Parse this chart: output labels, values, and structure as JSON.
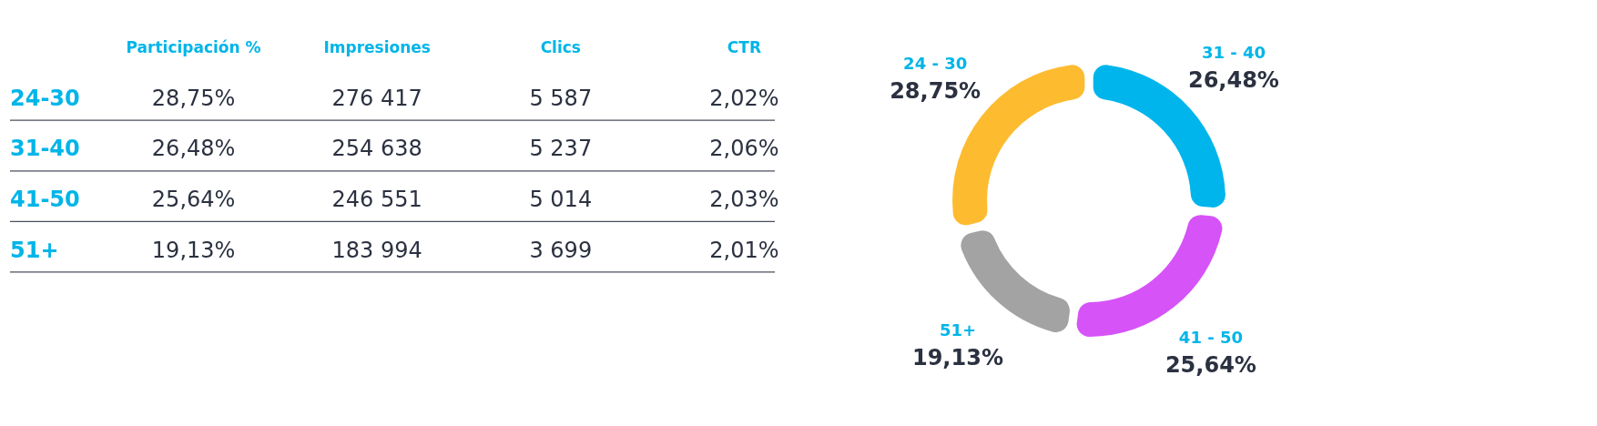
{
  "chart_data": [
    {
      "type": "other",
      "categories": [
        "24-30",
        "31-40",
        "41-50",
        "51+"
      ],
      "series": [
        {
          "name": "Participación %",
          "values": [
            28.75,
            26.48,
            25.64,
            19.13
          ],
          "value_labels": [
            "28,75%",
            "26,48%",
            "25,64%",
            "19,13%"
          ]
        },
        {
          "name": "Impresiones",
          "values": [
            276417,
            254638,
            246551,
            183994
          ],
          "value_labels": [
            "276 417",
            "254 638",
            "246 551",
            "183 994"
          ]
        },
        {
          "name": "Clics",
          "values": [
            5587,
            5237,
            5014,
            3699
          ],
          "value_labels": [
            "5 587",
            "5 237",
            "5 014",
            "3 699"
          ]
        },
        {
          "name": "CTR",
          "values": [
            2.02,
            2.06,
            2.03,
            2.01
          ],
          "value_labels": [
            "2,02%",
            "2,06%",
            "2,03%",
            "2,01%"
          ]
        }
      ]
    },
    {
      "type": "donut",
      "categories": [
        "24 - 30",
        "31 - 40",
        "41 - 50",
        "51+"
      ],
      "values": [
        28.75,
        26.48,
        25.64,
        19.13
      ],
      "colors": [
        "#fdbb30",
        "#00b5ec",
        "#d653f7",
        "#a3a3a3"
      ],
      "value_labels": [
        "28,75%",
        "26,48%",
        "25,64%",
        "19,13%"
      ],
      "legend": false
    }
  ]
}
